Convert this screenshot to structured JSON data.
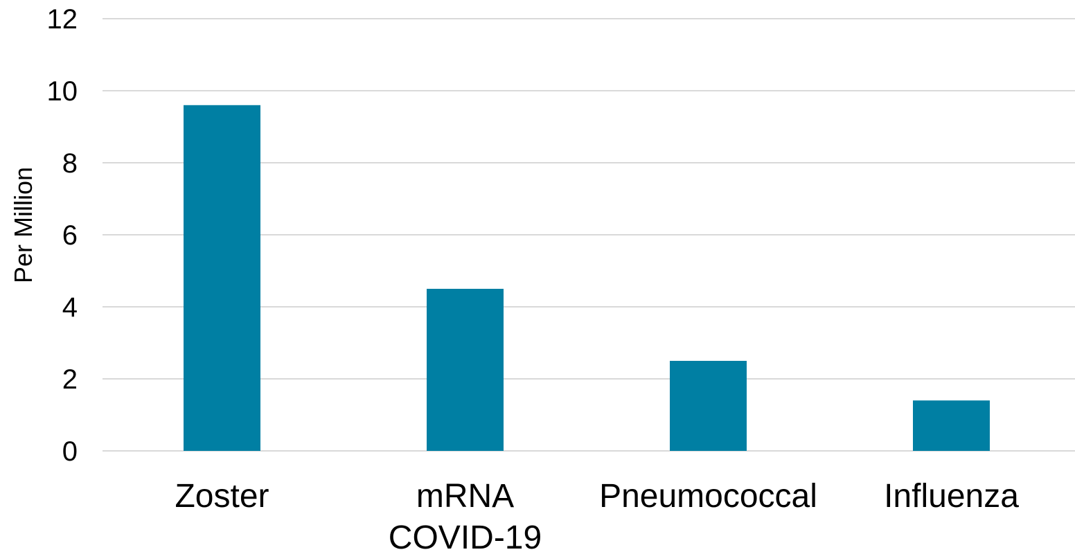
{
  "chart_data": {
    "type": "bar",
    "title": "",
    "xlabel": "",
    "ylabel": "Per Million",
    "categories": [
      "Zoster",
      "mRNA COVID-19",
      "Pneumococcal",
      "Influenza"
    ],
    "category_lines": [
      [
        "Zoster"
      ],
      [
        "mRNA",
        "COVID-19"
      ],
      [
        "Pneumococcal"
      ],
      [
        "Influenza"
      ]
    ],
    "values": [
      9.6,
      4.5,
      2.5,
      1.4
    ],
    "ylim": [
      0,
      12
    ],
    "yticks": [
      0,
      2,
      4,
      6,
      8,
      10,
      12
    ],
    "grid": true,
    "legend": "none",
    "bar_color": "#007fa3"
  }
}
